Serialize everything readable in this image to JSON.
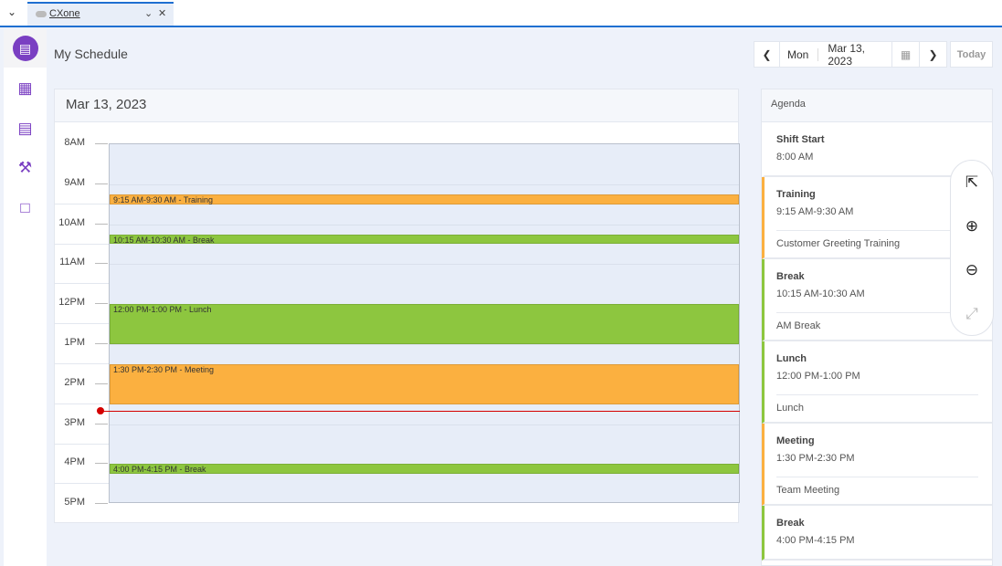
{
  "tab": {
    "label": "CXone"
  },
  "sidebar": {
    "items": [
      {
        "icon": "my-schedule-icon",
        "active": true
      },
      {
        "icon": "calendar-icon"
      },
      {
        "icon": "clipboard-user-icon"
      },
      {
        "icon": "gavel-icon"
      },
      {
        "icon": "presentation-icon"
      }
    ]
  },
  "page": {
    "title": "My Schedule"
  },
  "datenav": {
    "day": "Mon",
    "date": "Mar 13, 2023",
    "today": "Today"
  },
  "calendar": {
    "date": "Mar 13, 2023",
    "hours": [
      "8AM",
      "9AM",
      "10AM",
      "11AM",
      "12PM",
      "1PM",
      "2PM",
      "3PM",
      "4PM",
      "5PM"
    ],
    "current_time": 14.68,
    "colors": {
      "training": "#fbb040",
      "break": "#8dc63f",
      "lunch": "#8dc63f",
      "meeting": "#fbb040"
    },
    "events": [
      {
        "label": "9:15 AM-9:30 AM - Training",
        "start": 9.25,
        "end": 9.5,
        "color": "#fbb040"
      },
      {
        "label": "10:15 AM-10:30 AM - Break",
        "start": 10.25,
        "end": 10.5,
        "color": "#8dc63f"
      },
      {
        "label": "12:00 PM-1:00 PM - Lunch",
        "start": 12,
        "end": 13,
        "color": "#8dc63f"
      },
      {
        "label": "1:30 PM-2:30 PM - Meeting",
        "start": 13.5,
        "end": 14.5,
        "color": "#fbb040"
      },
      {
        "label": "4:00 PM-4:15 PM - Break",
        "start": 16,
        "end": 16.25,
        "color": "#8dc63f"
      }
    ]
  },
  "agenda": {
    "title": "Agenda",
    "items": [
      {
        "title": "Shift Start",
        "time": "8:00 AM",
        "color": ""
      },
      {
        "title": "Training",
        "time": "9:15 AM-9:30 AM",
        "desc": "Customer Greeting Training",
        "color": "#fbb040"
      },
      {
        "title": "Break",
        "time": "10:15 AM-10:30 AM",
        "desc": "AM Break",
        "color": "#8dc63f"
      },
      {
        "title": "Lunch",
        "time": "12:00 PM-1:00 PM",
        "desc": "Lunch",
        "color": "#8dc63f"
      },
      {
        "title": "Meeting",
        "time": "1:30 PM-2:30 PM",
        "desc": "Team Meeting",
        "color": "#fbb040"
      },
      {
        "title": "Break",
        "time": "4:00 PM-4:15 PM",
        "desc": "",
        "color": "#8dc63f"
      }
    ]
  },
  "zoom_controls": [
    "expand-icon",
    "zoom-in-icon",
    "zoom-out-icon",
    "fit-icon"
  ]
}
